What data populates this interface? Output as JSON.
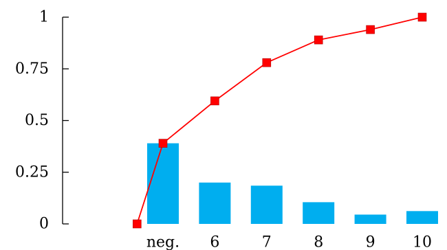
{
  "chart_data": {
    "type": "bar",
    "title": "",
    "xlabel": "",
    "ylabel": "",
    "categories": [
      "neg.",
      "6",
      "7",
      "8",
      "9",
      "10"
    ],
    "ylim": [
      0,
      1
    ],
    "yticks": [
      0,
      0.25,
      0.5,
      0.75,
      1
    ],
    "ytick_labels": [
      "0",
      "0.25",
      "0.5",
      "0.75",
      "1"
    ],
    "grid": false,
    "legend": "none",
    "series": [
      {
        "type": "bar",
        "color": "#00AEEF",
        "values": [
          0.39,
          0.2,
          0.185,
          0.105,
          0.045,
          0.062
        ]
      },
      {
        "type": "line",
        "color": "#FF0000",
        "marker": "square",
        "x": [
          4.5,
          5,
          6,
          7,
          8,
          9,
          10
        ],
        "values": [
          0.0,
          0.39,
          0.595,
          0.78,
          0.89,
          0.94,
          1.0
        ]
      }
    ]
  }
}
